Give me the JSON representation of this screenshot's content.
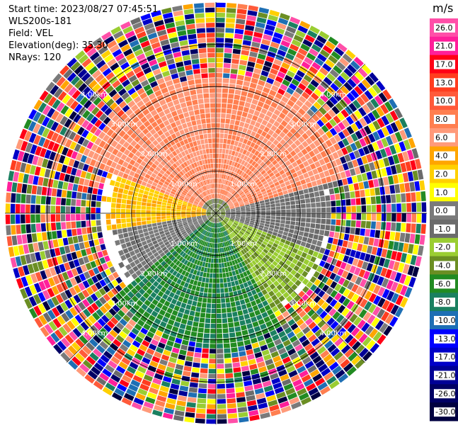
{
  "info": {
    "start_time": "Start time: 2023/08/27 07:45:51",
    "site": "WLS200s-181",
    "field": "Field: VEL",
    "elevation": "Elevation(deg): 35.30",
    "nrays": "NRays: 120"
  },
  "colorbar": {
    "unit": "m/s",
    "ticks": [
      "26.0",
      "21.0",
      "17.0",
      "13.0",
      "10.0",
      "8.0",
      "6.0",
      "4.0",
      "2.0",
      "1.0",
      "0.0",
      "-1.0",
      "-2.0",
      "-4.0",
      "-6.0",
      "-8.0",
      "-10.0",
      "-13.0",
      "-17.0",
      "-21.0",
      "-26.0",
      "-30.0"
    ],
    "colors": [
      "#ff4fa8",
      "#ff1f9a",
      "#ff0016",
      "#ff3d1f",
      "#ff5a3a",
      "#ff7f50",
      "#ff9a7a",
      "#ffa500",
      "#ffd000",
      "#ffff00",
      "#7a7a7a",
      "#6b6b6b",
      "#9acd32",
      "#6b8e23",
      "#228b22",
      "#1a8060",
      "#1e6fb4",
      "#0000ff",
      "#0000c8",
      "#000096",
      "#000064",
      "#000040"
    ]
  },
  "chart_data": {
    "type": "heatmap",
    "projection": "polar-ppi",
    "field": "VEL",
    "units": "m/s",
    "nrays": 120,
    "range_rings_km": [
      1.0,
      2.0,
      3.0,
      4.0
    ],
    "ring_labels": [
      "1.00km",
      "2.00km",
      "3.00km",
      "4.00km"
    ],
    "max_range_km": 5.0,
    "sectors": [
      {
        "az_from": 290,
        "az_to": 75,
        "range_km": [
          0.3,
          3.2
        ],
        "values_ms": [
          6.0,
          8.0
        ]
      },
      {
        "az_from": 260,
        "az_to": 290,
        "range_km": [
          0.2,
          2.4
        ],
        "values_ms": [
          2.0,
          4.0
        ]
      },
      {
        "az_from": 60,
        "az_to": 110,
        "range_km": [
          0.2,
          2.6
        ],
        "values_ms": [
          -1.0,
          0.0
        ]
      },
      {
        "az_from": 110,
        "az_to": 150,
        "range_km": [
          0.2,
          2.6
        ],
        "values_ms": [
          -2.0,
          -4.0
        ]
      },
      {
        "az_from": 150,
        "az_to": 230,
        "range_km": [
          0.2,
          3.1
        ],
        "values_ms": [
          -6.0,
          -8.0
        ]
      },
      {
        "az_from": 230,
        "az_to": 260,
        "range_km": [
          0.2,
          2.3
        ],
        "values_ms": [
          0.0,
          -1.0
        ]
      }
    ],
    "outer_noise_range_km": [
      3.0,
      5.0
    ]
  }
}
